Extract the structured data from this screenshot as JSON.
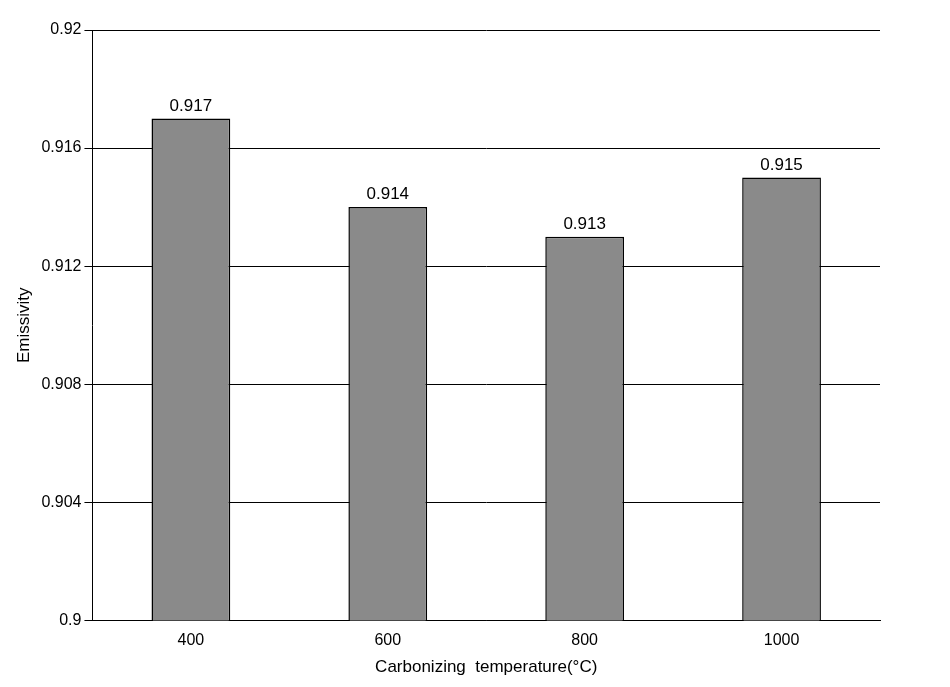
{
  "chart_data": {
    "type": "bar",
    "x_label": "Carbonizing  temperature(°C)",
    "y_label": "Emissivity",
    "categories": [
      "400",
      "600",
      "800",
      "1000"
    ],
    "values": [
      0.917,
      0.914,
      0.913,
      0.915
    ],
    "color": "#8a8a8a",
    "ylim": [
      0.9,
      0.92
    ],
    "yticks": [
      0.9,
      0.904,
      0.908,
      0.912,
      0.916,
      0.92
    ],
    "grid": true,
    "data_labels": true
  }
}
